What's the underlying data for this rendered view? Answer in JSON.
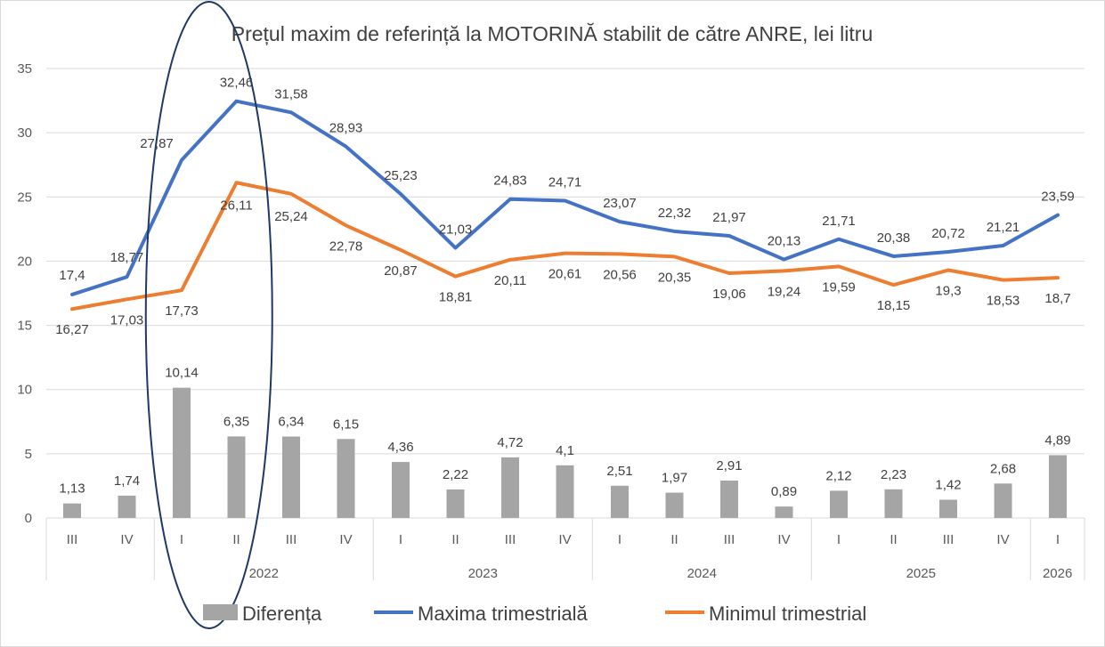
{
  "chart_data": {
    "type": "bar+line",
    "title": "Prețul maxim de referință la MOTORINĂ stabilit de către ANRE, lei litru",
    "categories": [
      "III",
      "IV",
      "I",
      "II",
      "III",
      "IV",
      "I",
      "II",
      "III",
      "IV",
      "I",
      "II",
      "III",
      "IV",
      "I",
      "II",
      "III",
      "IV",
      "I"
    ],
    "year_groups": [
      {
        "label": "",
        "start": 0,
        "end": 1
      },
      {
        "label": "2022",
        "start": 2,
        "end": 5
      },
      {
        "label": "2023",
        "start": 6,
        "end": 9
      },
      {
        "label": "2024",
        "start": 10,
        "end": 13
      },
      {
        "label": "2025",
        "start": 14,
        "end": 17
      },
      {
        "label": "2026",
        "start": 18,
        "end": 18
      }
    ],
    "ylim": [
      0,
      35
    ],
    "yticks": [
      "0",
      "5",
      "10",
      "15",
      "20",
      "25",
      "30",
      "35"
    ],
    "grid": true,
    "legend_position": "bottom",
    "series": [
      {
        "name": "Diferența",
        "type": "bar",
        "color": "#a5a5a5",
        "values": [
          1.13,
          1.74,
          10.14,
          6.35,
          6.34,
          6.15,
          4.36,
          2.22,
          4.72,
          4.1,
          2.51,
          1.97,
          2.91,
          0.89,
          2.12,
          2.23,
          1.42,
          2.68,
          4.89
        ],
        "labels": [
          "1,13",
          "1,74",
          "10,14",
          "6,35",
          "6,34",
          "6,15",
          "4,36",
          "2,22",
          "4,72",
          "4,1",
          "2,51",
          "1,97",
          "2,91",
          "0,89",
          "2,12",
          "2,23",
          "1,42",
          "2,68",
          "4,89"
        ]
      },
      {
        "name": "Maxima trimestrială",
        "type": "line",
        "color": "#4472c4",
        "values": [
          17.4,
          18.77,
          27.87,
          32.46,
          31.58,
          28.93,
          25.23,
          21.03,
          24.83,
          24.71,
          23.07,
          22.32,
          21.97,
          20.13,
          21.71,
          20.38,
          20.72,
          21.21,
          23.59
        ],
        "labels": [
          "17,4",
          "18,77",
          "27,87",
          "32,46",
          "31,58",
          "28,93",
          "25,23",
          "21,03",
          "24,83",
          "24,71",
          "23,07",
          "22,32",
          "21,97",
          "20,13",
          "21,71",
          "20,38",
          "20,72",
          "21,21",
          "23,59"
        ]
      },
      {
        "name": "Minimul trimestrial",
        "type": "line",
        "color": "#ed7d31",
        "values": [
          16.27,
          17.03,
          17.73,
          26.11,
          25.24,
          22.78,
          20.87,
          18.81,
          20.11,
          20.61,
          20.56,
          20.35,
          19.06,
          19.24,
          19.59,
          18.15,
          19.3,
          18.53,
          18.7
        ],
        "labels": [
          "16,27",
          "17,03",
          "17,73",
          "26,11",
          "25,24",
          "22,78",
          "20,87",
          "18,81",
          "20,11",
          "20,61",
          "20,56",
          "20,35",
          "19,06",
          "19,24",
          "19,59",
          "18,15",
          "19,3",
          "18,53",
          "18,7"
        ]
      }
    ],
    "annotation": {
      "type": "ellipse",
      "highlight_categories": [
        2,
        3
      ],
      "color": "#1f3864"
    }
  }
}
